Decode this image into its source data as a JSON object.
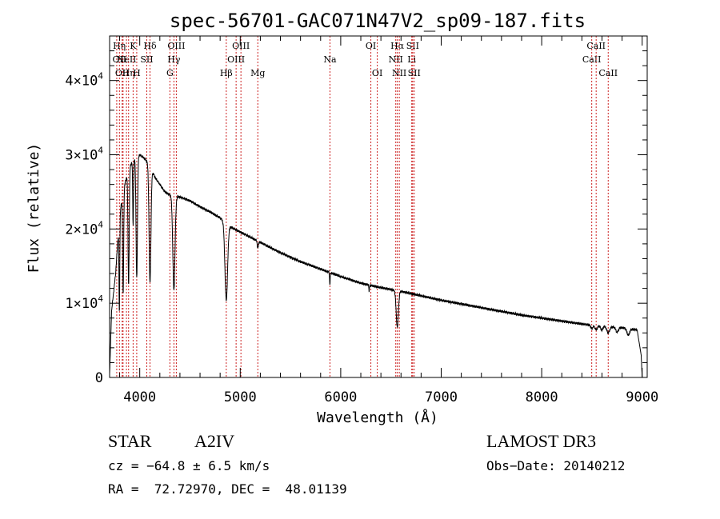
{
  "chart_data": {
    "type": "line",
    "title": "spec-56701-GAC071N47V2_sp09-187.fits",
    "xlabel": "Wavelength (Å)",
    "ylabel": "Flux (relative)",
    "xlim": [
      3700,
      9050
    ],
    "ylim": [
      0,
      46000
    ],
    "xticks": [
      4000,
      5000,
      6000,
      7000,
      8000,
      9000
    ],
    "xtick_labels": [
      "4000",
      "5000",
      "6000",
      "7000",
      "8000",
      "9000"
    ],
    "yticks": [
      0,
      10000,
      20000,
      30000,
      40000
    ],
    "ytick_labels": [
      {
        "mantissa": "0",
        "exp": ""
      },
      {
        "mantissa": "1×10",
        "exp": "4"
      },
      {
        "mantissa": "2×10",
        "exp": "4"
      },
      {
        "mantissa": "3×10",
        "exp": "4"
      },
      {
        "mantissa": "4×10",
        "exp": "4"
      }
    ],
    "series": [
      {
        "name": "spectrum",
        "continuum": [
          [
            3700,
            500
          ],
          [
            3720,
            9000
          ],
          [
            3760,
            14000
          ],
          [
            3800,
            22000
          ],
          [
            3850,
            26000
          ],
          [
            3900,
            28500
          ],
          [
            3950,
            29500
          ],
          [
            4000,
            30000
          ],
          [
            4050,
            29500
          ],
          [
            4100,
            28500
          ],
          [
            4150,
            27000
          ],
          [
            4200,
            26000
          ],
          [
            4250,
            25000
          ],
          [
            4300,
            24600
          ],
          [
            4400,
            24300
          ],
          [
            4500,
            23800
          ],
          [
            4600,
            23000
          ],
          [
            4700,
            22300
          ],
          [
            4800,
            21500
          ],
          [
            4900,
            20300
          ],
          [
            5000,
            19600
          ],
          [
            5100,
            18900
          ],
          [
            5200,
            18200
          ],
          [
            5400,
            16800
          ],
          [
            5600,
            15600
          ],
          [
            5800,
            14600
          ],
          [
            6000,
            13600
          ],
          [
            6200,
            12700
          ],
          [
            6400,
            12100
          ],
          [
            6600,
            11600
          ],
          [
            6800,
            11000
          ],
          [
            7000,
            10400
          ],
          [
            7200,
            9900
          ],
          [
            7400,
            9400
          ],
          [
            7600,
            8900
          ],
          [
            7800,
            8400
          ],
          [
            8000,
            8000
          ],
          [
            8200,
            7600
          ],
          [
            8400,
            7200
          ],
          [
            8600,
            6900
          ],
          [
            8800,
            6700
          ],
          [
            8950,
            6400
          ],
          [
            8990,
            3000
          ],
          [
            9000,
            0
          ]
        ],
        "absorption_lines": [
          {
            "center": 3797,
            "depth": 0.6,
            "width": 4
          },
          {
            "center": 3835,
            "depth": 0.55,
            "width": 5
          },
          {
            "center": 3889,
            "depth": 0.55,
            "width": 6
          },
          {
            "center": 3934,
            "depth": 0.3,
            "width": 4
          },
          {
            "center": 3970,
            "depth": 0.55,
            "width": 7
          },
          {
            "center": 4102,
            "depth": 0.55,
            "width": 9
          },
          {
            "center": 4340,
            "depth": 0.52,
            "width": 11
          },
          {
            "center": 4861,
            "depth": 0.5,
            "width": 13
          },
          {
            "center": 5175,
            "depth": 0.05,
            "width": 6
          },
          {
            "center": 5892,
            "depth": 0.12,
            "width": 3
          },
          {
            "center": 6283,
            "depth": 0.07,
            "width": 3
          },
          {
            "center": 6563,
            "depth": 0.42,
            "width": 11
          },
          {
            "center": 8498,
            "depth": 0.07,
            "width": 10
          },
          {
            "center": 8542,
            "depth": 0.08,
            "width": 12
          },
          {
            "center": 8598,
            "depth": 0.08,
            "width": 10
          },
          {
            "center": 8662,
            "depth": 0.12,
            "width": 14
          },
          {
            "center": 8750,
            "depth": 0.1,
            "width": 12
          },
          {
            "center": 8862,
            "depth": 0.13,
            "width": 14
          }
        ]
      }
    ],
    "line_markers": [
      {
        "wavelength": 3771,
        "label": "H",
        "row": 0
      },
      {
        "wavelength": 3798,
        "label": "OII",
        "row": 1
      },
      {
        "wavelength": 3825,
        "label": "OII",
        "row": 2
      },
      {
        "wavelength": 3834,
        "label": "η",
        "row": 0
      },
      {
        "wavelength": 3868,
        "label": "NeII",
        "row": 1
      },
      {
        "wavelength": 3889,
        "label": "Hη",
        "row": 2
      },
      {
        "wavelength": 3934,
        "label": "K",
        "row": 0
      },
      {
        "wavelength": 3970,
        "label": "H",
        "row": 2
      },
      {
        "wavelength": 4070,
        "label": "SII",
        "row": 1
      },
      {
        "wavelength": 4102,
        "label": "Hδ",
        "row": 0
      },
      {
        "wavelength": 4300,
        "label": "G",
        "row": 2
      },
      {
        "wavelength": 4340,
        "label": "Hγ",
        "row": 1
      },
      {
        "wavelength": 4364,
        "label": "OIII",
        "row": 0
      },
      {
        "wavelength": 4861,
        "label": "Hβ",
        "row": 2
      },
      {
        "wavelength": 4959,
        "label": "OIII",
        "row": 1
      },
      {
        "wavelength": 5007,
        "label": "OIII",
        "row": 0
      },
      {
        "wavelength": 5175,
        "label": "Mg",
        "row": 2
      },
      {
        "wavelength": 5893,
        "label": "Na",
        "row": 1
      },
      {
        "wavelength": 6300,
        "label": "OI",
        "row": 0
      },
      {
        "wavelength": 6364,
        "label": "OI",
        "row": 2
      },
      {
        "wavelength": 6548,
        "label": "NII",
        "row": 1
      },
      {
        "wavelength": 6563,
        "label": "Hα",
        "row": 0
      },
      {
        "wavelength": 6583,
        "label": "NII",
        "row": 2
      },
      {
        "wavelength": 6707,
        "label": "Li",
        "row": 1
      },
      {
        "wavelength": 6716,
        "label": "SII",
        "row": 0
      },
      {
        "wavelength": 6731,
        "label": "SII",
        "row": 2
      },
      {
        "wavelength": 8498,
        "label": "CaII",
        "row": 1
      },
      {
        "wavelength": 8542,
        "label": "CaII",
        "row": 0
      },
      {
        "wavelength": 8662,
        "label": "CaII",
        "row": 2
      }
    ]
  },
  "info": {
    "object_type": "STAR",
    "subclass": "A2IV",
    "survey": "LAMOST DR3",
    "redshift": "cz = −64.8 ± 6.5 km/s",
    "obs_date": "Obs−Date: 20140212",
    "coords": "RA =  72.72970, DEC =  48.01139"
  }
}
